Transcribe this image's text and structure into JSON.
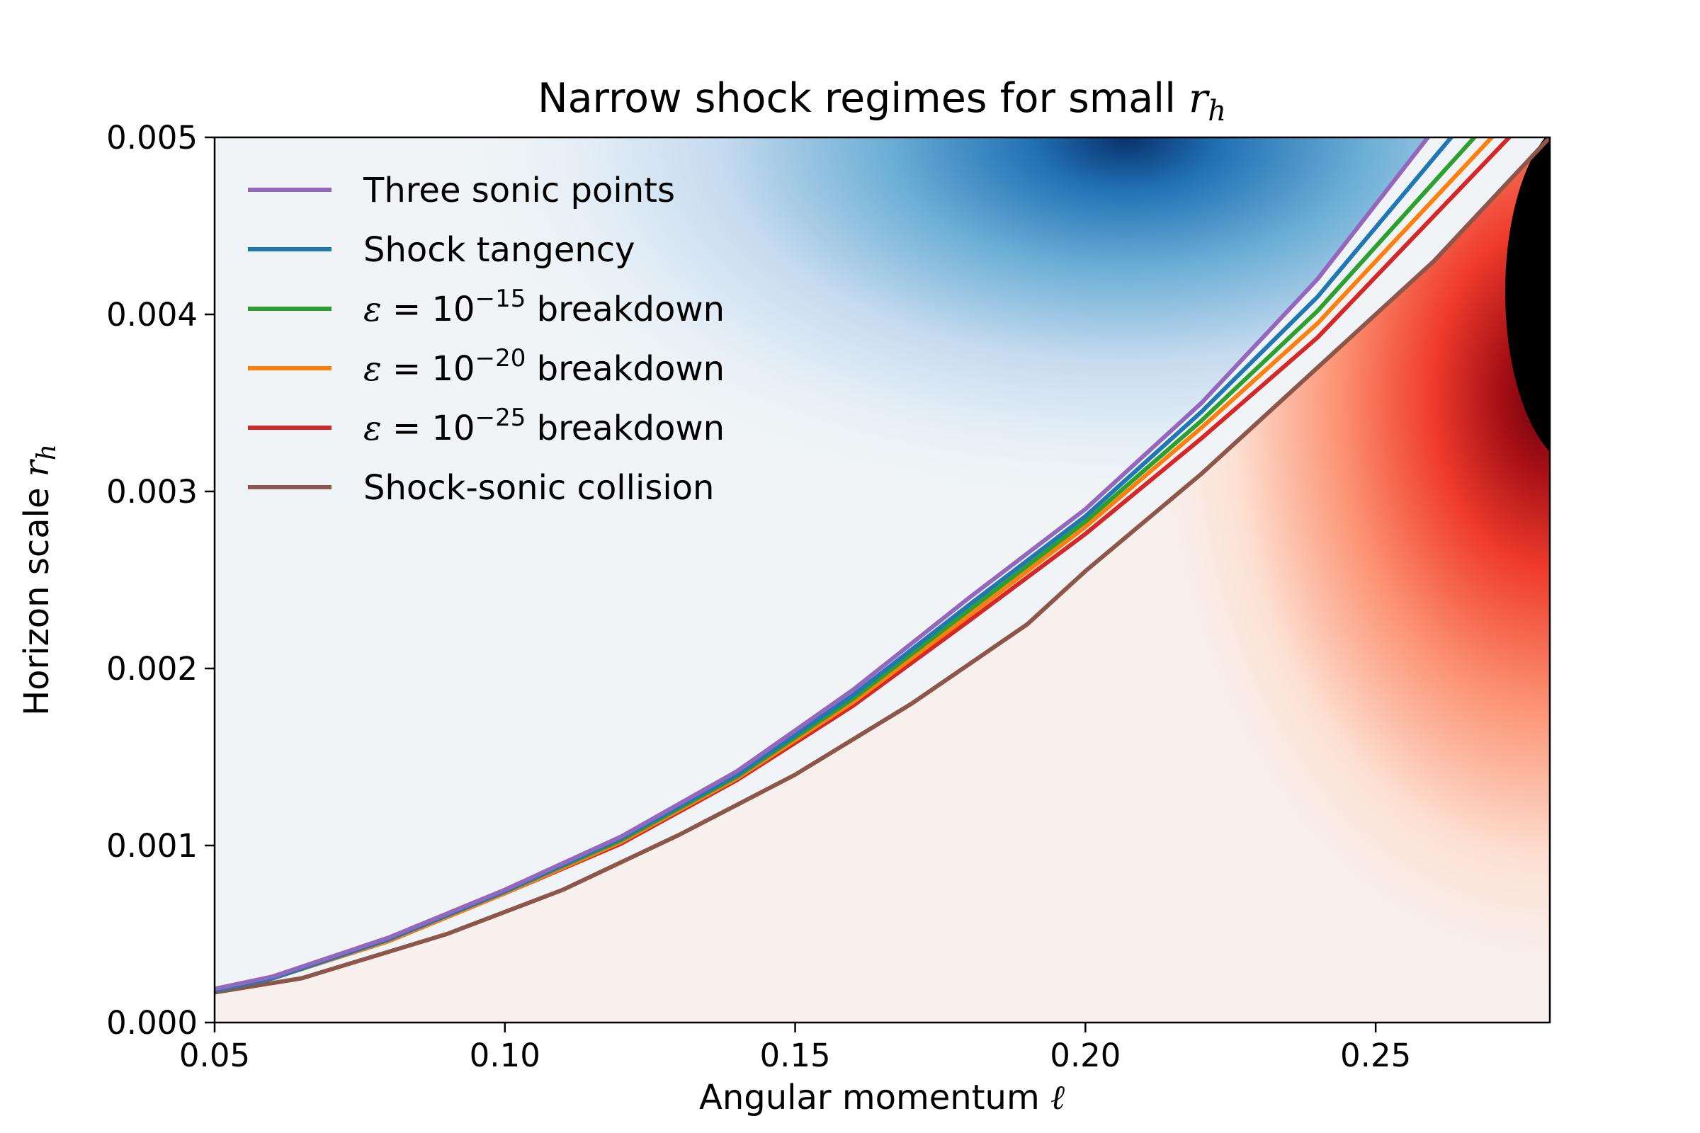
{
  "chart_data": {
    "type": "line",
    "title_text": "Narrow shock regimes for small ",
    "title_var": "r",
    "title_sub": "h",
    "xlabel_text": "Angular momentum ",
    "xlabel_var": "ℓ",
    "ylabel_text": "Horizon scale ",
    "ylabel_var": "r",
    "ylabel_sub": "h",
    "xlim": [
      0.05,
      0.28
    ],
    "ylim": [
      0.0,
      0.005
    ],
    "xticks": [
      0.05,
      0.1,
      0.15,
      0.2,
      0.25
    ],
    "xtick_labels": [
      "0.05",
      "0.10",
      "0.15",
      "0.20",
      "0.25"
    ],
    "yticks": [
      0.0,
      0.001,
      0.002,
      0.003,
      0.004,
      0.005
    ],
    "ytick_labels": [
      "0.000",
      "0.001",
      "0.002",
      "0.003",
      "0.004",
      "0.005"
    ],
    "grid": false,
    "legend_position": "upper-left",
    "background_colormaps": [
      "Blues",
      "Reds"
    ],
    "series": [
      {
        "name": "Three sonic points",
        "color": "#9467bd",
        "x": [
          0.05,
          0.06,
          0.08,
          0.1,
          0.12,
          0.14,
          0.16,
          0.18,
          0.2,
          0.22,
          0.24,
          0.259
        ],
        "y": [
          0.00019,
          0.00026,
          0.00048,
          0.00075,
          0.00105,
          0.00142,
          0.00188,
          0.0024,
          0.0029,
          0.0035,
          0.0042,
          0.005
        ]
      },
      {
        "name": "Shock tangency",
        "color": "#1f77b4",
        "x": [
          0.05,
          0.06,
          0.08,
          0.1,
          0.12,
          0.14,
          0.16,
          0.18,
          0.2,
          0.22,
          0.24,
          0.263
        ],
        "y": [
          0.00018,
          0.00025,
          0.00047,
          0.00074,
          0.00104,
          0.0014,
          0.00185,
          0.00236,
          0.00286,
          0.00345,
          0.0041,
          0.005
        ]
      },
      {
        "name": "ε = 10^{-15} breakdown",
        "color": "#2ca02c",
        "sup": "−15",
        "x": [
          0.05,
          0.06,
          0.08,
          0.1,
          0.12,
          0.14,
          0.16,
          0.18,
          0.2,
          0.22,
          0.24,
          0.267
        ],
        "y": [
          0.00018,
          0.00025,
          0.00047,
          0.00074,
          0.00103,
          0.00139,
          0.00183,
          0.00233,
          0.00283,
          0.0034,
          0.00402,
          0.005
        ]
      },
      {
        "name": "ε = 10^{-20} breakdown",
        "color": "#ff7f0e",
        "sup": "−20",
        "x": [
          0.05,
          0.06,
          0.08,
          0.1,
          0.12,
          0.14,
          0.16,
          0.18,
          0.2,
          0.22,
          0.24,
          0.27
        ],
        "y": [
          0.00018,
          0.00025,
          0.00046,
          0.00073,
          0.00102,
          0.00138,
          0.00181,
          0.0023,
          0.0028,
          0.00336,
          0.00395,
          0.005
        ]
      },
      {
        "name": "ε = 10^{-25} breakdown",
        "color": "#d62728",
        "sup": "−25",
        "x": [
          0.05,
          0.06,
          0.08,
          0.1,
          0.12,
          0.14,
          0.16,
          0.18,
          0.2,
          0.22,
          0.24,
          0.273
        ],
        "y": [
          0.00018,
          0.00025,
          0.00046,
          0.00073,
          0.00101,
          0.00137,
          0.00179,
          0.00227,
          0.00276,
          0.0033,
          0.00387,
          0.005
        ]
      },
      {
        "name": "Shock-sonic collision",
        "color": "#8c564b",
        "x": [
          0.05,
          0.065,
          0.09,
          0.11,
          0.13,
          0.15,
          0.17,
          0.19,
          0.2,
          0.22,
          0.24,
          0.26,
          0.28
        ],
        "y": [
          0.00017,
          0.00025,
          0.0005,
          0.00075,
          0.00106,
          0.0014,
          0.0018,
          0.00225,
          0.00255,
          0.0031,
          0.0037,
          0.0043,
          0.005
        ]
      }
    ]
  }
}
